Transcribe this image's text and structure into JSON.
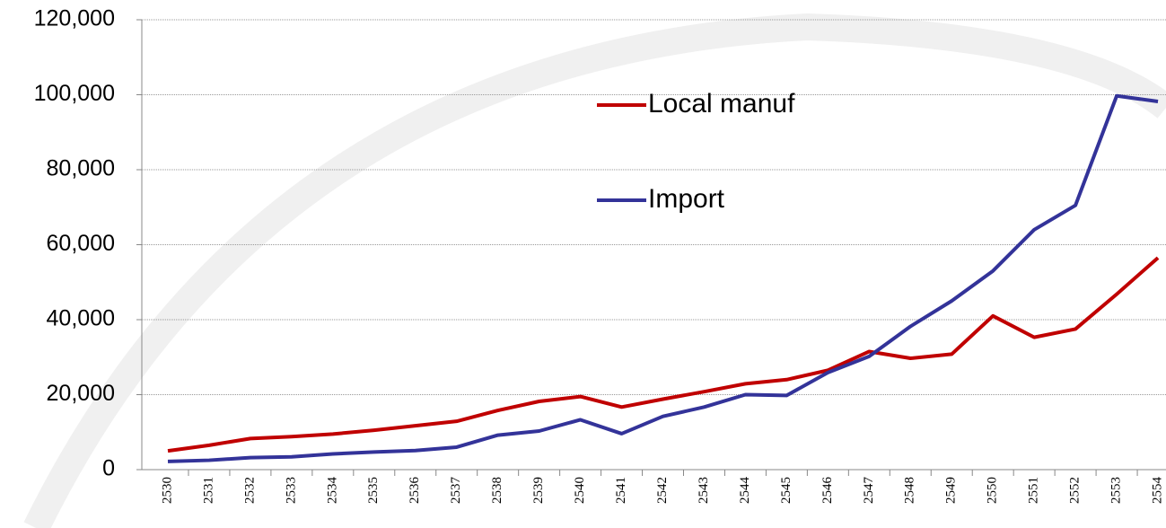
{
  "chart_data": {
    "type": "line",
    "categories": [
      "2530",
      "2531",
      "2532",
      "2533",
      "2534",
      "2535",
      "2536",
      "2537",
      "2538",
      "2539",
      "2540",
      "2541",
      "2542",
      "2543",
      "2544",
      "2545",
      "2546",
      "2547",
      "2548",
      "2549",
      "2550",
      "2551",
      "2552",
      "2553",
      "2554"
    ],
    "series": [
      {
        "name": "Local manuf",
        "color": "#c00000",
        "values": [
          5000,
          6500,
          8300,
          8800,
          9500,
          10500,
          11700,
          12900,
          15800,
          18200,
          19500,
          16700,
          18800,
          20800,
          22900,
          24000,
          26500,
          31500,
          29700,
          30800,
          41000,
          35300,
          37500,
          46800,
          56500
        ]
      },
      {
        "name": "Import",
        "color": "#333399",
        "values": [
          2200,
          2500,
          3200,
          3400,
          4200,
          4700,
          5100,
          6000,
          9200,
          10300,
          13300,
          9600,
          14200,
          16700,
          20000,
          19800,
          25900,
          30200,
          38200,
          45000,
          53000,
          64000,
          70500,
          99700,
          98200
        ]
      }
    ],
    "ylim": [
      0,
      120000
    ],
    "yticks": [
      0,
      {
        "value": 20000,
        "label": "20,000"
      },
      {
        "value": 40000,
        "label": "40,000"
      },
      {
        "value": 60000,
        "label": "60,000"
      },
      {
        "value": 80000,
        "label": "80,000"
      },
      {
        "value": 100000,
        "label": "100,000"
      },
      {
        "value": 120000,
        "label": "120,000"
      }
    ],
    "grid": true
  }
}
